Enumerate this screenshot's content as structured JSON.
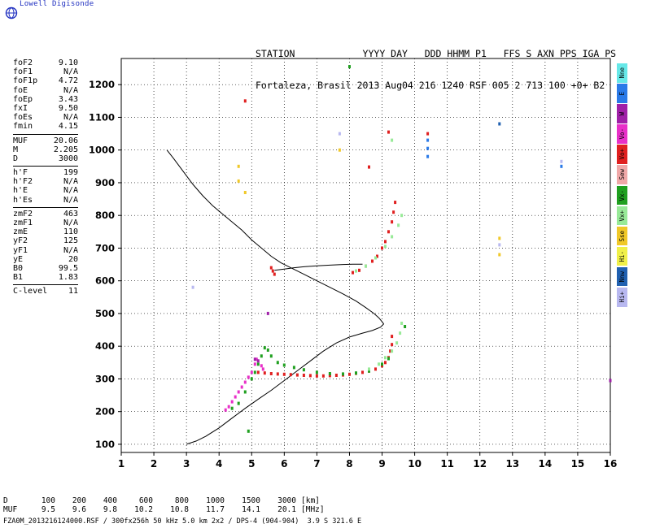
{
  "logo": {
    "text": "Lowell Digisonde"
  },
  "header": {
    "labels_line": "STATION            YYYY DAY   DDD HHMM P1   FFS S AXN PPS IGA PS",
    "values_line": "Fortaleza, Brasil 2013 Aug04 216 1240 RSF 005 2 713 100 +0+ B2"
  },
  "params": [
    {
      "label": "foF2",
      "value": "9.10"
    },
    {
      "label": "foF1",
      "value": "N/A"
    },
    {
      "label": "foF1p",
      "value": "4.72"
    },
    {
      "label": "foE",
      "value": "N/A"
    },
    {
      "label": "foEp",
      "value": "3.43"
    },
    {
      "label": "fxI",
      "value": "9.50"
    },
    {
      "label": "foEs",
      "value": "N/A"
    },
    {
      "label": "fmin",
      "value": "4.15"
    },
    {
      "sep": true
    },
    {
      "label": "MUF",
      "value": "20.06"
    },
    {
      "label": "M",
      "value": "2.205"
    },
    {
      "label": "D",
      "value": "3000"
    },
    {
      "sep": true
    },
    {
      "label": "h'F",
      "value": "199"
    },
    {
      "label": "h'F2",
      "value": "N/A"
    },
    {
      "label": "h'E",
      "value": "N/A"
    },
    {
      "label": "h'Es",
      "value": "N/A"
    },
    {
      "sep": true
    },
    {
      "label": "zmF2",
      "value": "463"
    },
    {
      "label": "zmF1",
      "value": "N/A"
    },
    {
      "label": "zmE",
      "value": "110"
    },
    {
      "label": "yF2",
      "value": "125"
    },
    {
      "label": "yF1",
      "value": "N/A"
    },
    {
      "label": "yE",
      "value": "20"
    },
    {
      "label": "B0",
      "value": "99.5"
    },
    {
      "label": "B1",
      "value": "1.83"
    },
    {
      "sep": true
    },
    {
      "label": "C-level",
      "value": "11"
    }
  ],
  "legend": [
    {
      "label": "Nne",
      "color": "#66e8e8"
    },
    {
      "label": "E",
      "color": "#2a7ae8"
    },
    {
      "label": "W",
      "color": "#a020a8"
    },
    {
      "label": "Vo-",
      "color": "#e830c8"
    },
    {
      "label": "Vo+",
      "color": "#e02020"
    },
    {
      "label": "Sew",
      "color": "#f0a8a8"
    },
    {
      "label": "Vx-",
      "color": "#20a020"
    },
    {
      "label": "Vx+",
      "color": "#98ea98"
    },
    {
      "label": "Sse",
      "color": "#f0c828"
    },
    {
      "label": "Hi-",
      "color": "#f0f048"
    },
    {
      "label": "Nnw",
      "color": "#2060b0"
    },
    {
      "label": "Hi+",
      "color": "#b8b8f0"
    }
  ],
  "muf_table": {
    "d_label": "D",
    "d_values": [
      "100",
      "200",
      "400",
      "600",
      "800",
      "1000",
      "1500",
      "3000"
    ],
    "d_unit": "[km]",
    "muf_label": "MUF",
    "muf_values": [
      "9.5",
      "9.6",
      "9.8",
      "10.2",
      "10.8",
      "11.7",
      "14.1",
      "20.1"
    ],
    "muf_unit": "[MHz]"
  },
  "footer": "FZA0M_2013216124000.RSF / 300fx256h 50 kHz 5.0 km 2x2 / DPS-4 (904-904)  3.9 S 321.6 E",
  "chart_data": {
    "type": "scatter",
    "xlim": [
      1,
      16
    ],
    "ylim": [
      75,
      1280
    ],
    "xticks": [
      1,
      2,
      3,
      4,
      5,
      6,
      7,
      8,
      9,
      10,
      11,
      12,
      13,
      14,
      15,
      16
    ],
    "yticks": [
      100,
      200,
      300,
      400,
      500,
      600,
      700,
      800,
      900,
      1000,
      1100,
      1200
    ],
    "grid": true,
    "series": [
      {
        "name": "Vo+",
        "color": "#e02020",
        "points": [
          [
            5.2,
            320
          ],
          [
            5.4,
            318
          ],
          [
            5.6,
            316
          ],
          [
            5.8,
            315
          ],
          [
            6.0,
            314
          ],
          [
            6.2,
            313
          ],
          [
            6.4,
            312
          ],
          [
            6.6,
            311
          ],
          [
            6.8,
            310
          ],
          [
            7.0,
            309
          ],
          [
            7.2,
            309
          ],
          [
            7.4,
            310
          ],
          [
            7.6,
            311
          ],
          [
            7.8,
            312
          ],
          [
            8.0,
            314
          ],
          [
            8.2,
            317
          ],
          [
            8.4,
            320
          ],
          [
            8.6,
            324
          ],
          [
            8.8,
            330
          ],
          [
            9.0,
            340
          ],
          [
            9.1,
            350
          ],
          [
            9.2,
            365
          ],
          [
            9.25,
            385
          ],
          [
            9.3,
            405
          ],
          [
            9.3,
            430
          ],
          [
            8.1,
            625
          ],
          [
            8.3,
            632
          ],
          [
            8.5,
            645
          ],
          [
            8.7,
            660
          ],
          [
            8.85,
            675
          ],
          [
            9.0,
            700
          ],
          [
            9.1,
            720
          ],
          [
            9.2,
            750
          ],
          [
            9.3,
            780
          ],
          [
            9.35,
            810
          ],
          [
            9.4,
            840
          ],
          [
            5.6,
            640
          ],
          [
            5.65,
            630
          ],
          [
            5.7,
            620
          ],
          [
            4.8,
            1150
          ],
          [
            8.6,
            948
          ],
          [
            9.2,
            1055
          ],
          [
            10.4,
            1050
          ]
        ]
      },
      {
        "name": "Vo-",
        "color": "#e830c8",
        "points": [
          [
            4.2,
            205
          ],
          [
            4.3,
            215
          ],
          [
            4.4,
            230
          ],
          [
            4.5,
            245
          ],
          [
            4.6,
            260
          ],
          [
            4.7,
            275
          ],
          [
            4.8,
            290
          ],
          [
            4.9,
            305
          ],
          [
            5.0,
            320
          ],
          [
            5.1,
            345
          ],
          [
            5.15,
            360
          ],
          [
            5.3,
            340
          ],
          [
            5.35,
            330
          ]
        ]
      },
      {
        "name": "Vx-",
        "color": "#20a020",
        "points": [
          [
            4.4,
            210
          ],
          [
            4.6,
            225
          ],
          [
            4.8,
            260
          ],
          [
            5.0,
            300
          ],
          [
            5.1,
            320
          ],
          [
            5.2,
            345
          ],
          [
            5.3,
            370
          ],
          [
            5.4,
            395
          ],
          [
            5.5,
            388
          ],
          [
            5.6,
            370
          ],
          [
            5.8,
            350
          ],
          [
            6.0,
            342
          ],
          [
            6.3,
            335
          ],
          [
            6.6,
            328
          ],
          [
            7.0,
            320
          ],
          [
            7.4,
            316
          ],
          [
            7.8,
            315
          ],
          [
            8.2,
            318
          ],
          [
            8.6,
            324
          ],
          [
            9.0,
            345
          ],
          [
            9.2,
            362
          ],
          [
            4.9,
            140
          ],
          [
            8.0,
            1255
          ],
          [
            9.7,
            460
          ]
        ]
      },
      {
        "name": "Vx+",
        "color": "#98ea98",
        "points": [
          [
            8.6,
            330
          ],
          [
            8.9,
            345
          ],
          [
            9.1,
            365
          ],
          [
            9.3,
            385
          ],
          [
            9.45,
            410
          ],
          [
            9.55,
            440
          ],
          [
            9.6,
            470
          ],
          [
            8.2,
            630
          ],
          [
            8.5,
            645
          ],
          [
            8.8,
            670
          ],
          [
            9.1,
            705
          ],
          [
            9.3,
            735
          ],
          [
            9.5,
            770
          ],
          [
            9.6,
            800
          ],
          [
            9.3,
            1030
          ]
        ]
      },
      {
        "name": "Hi+",
        "color": "#b8b8f0",
        "points": [
          [
            3.2,
            580
          ],
          [
            7.7,
            1050
          ],
          [
            12.6,
            710
          ],
          [
            14.5,
            965
          ]
        ]
      },
      {
        "name": "E",
        "color": "#2a7ae8",
        "points": [
          [
            10.4,
            980
          ],
          [
            10.4,
            1005
          ],
          [
            10.4,
            1030
          ],
          [
            14.5,
            950
          ]
        ]
      },
      {
        "name": "Sse",
        "color": "#f0c828",
        "points": [
          [
            4.6,
            950
          ],
          [
            4.6,
            905
          ],
          [
            4.8,
            870
          ],
          [
            7.7,
            1000
          ],
          [
            12.6,
            730
          ],
          [
            12.6,
            680
          ]
        ]
      },
      {
        "name": "W",
        "color": "#a020a8",
        "points": [
          [
            5.1,
            360
          ],
          [
            5.2,
            355
          ],
          [
            16.0,
            295
          ],
          [
            5.5,
            500
          ]
        ]
      },
      {
        "name": "Nnw",
        "color": "#2060b0",
        "points": [
          [
            12.6,
            1080
          ]
        ]
      }
    ],
    "curves": [
      {
        "name": "true-height profile",
        "color": "#000000",
        "points": [
          [
            2.4,
            1000
          ],
          [
            2.6,
            975
          ],
          [
            2.9,
            935
          ],
          [
            3.2,
            895
          ],
          [
            3.5,
            860
          ],
          [
            3.8,
            830
          ],
          [
            4.1,
            805
          ],
          [
            4.4,
            780
          ],
          [
            4.7,
            755
          ],
          [
            5.0,
            725
          ],
          [
            5.3,
            700
          ],
          [
            5.6,
            675
          ],
          [
            5.9,
            655
          ],
          [
            6.2,
            640
          ],
          [
            6.6,
            620
          ],
          [
            7.0,
            600
          ],
          [
            7.4,
            580
          ],
          [
            7.8,
            560
          ],
          [
            8.2,
            538
          ],
          [
            8.5,
            518
          ],
          [
            8.75,
            500
          ],
          [
            8.9,
            487
          ],
          [
            9.0,
            475
          ],
          [
            9.05,
            468
          ],
          [
            8.95,
            458
          ],
          [
            8.7,
            448
          ],
          [
            8.4,
            440
          ],
          [
            8.0,
            428
          ],
          [
            7.6,
            410
          ],
          [
            7.2,
            385
          ],
          [
            6.8,
            355
          ],
          [
            6.4,
            325
          ],
          [
            6.0,
            295
          ],
          [
            5.6,
            265
          ],
          [
            5.2,
            238
          ],
          [
            4.8,
            210
          ],
          [
            4.4,
            180
          ],
          [
            4.0,
            150
          ],
          [
            3.6,
            125
          ],
          [
            3.3,
            110
          ],
          [
            3.0,
            100
          ]
        ]
      },
      {
        "name": "E-layer model",
        "color": "#000000",
        "points": [
          [
            5.7,
            632
          ],
          [
            6.0,
            636
          ],
          [
            6.3,
            640
          ],
          [
            6.6,
            643
          ],
          [
            7.0,
            646
          ],
          [
            7.4,
            648
          ],
          [
            7.8,
            650
          ],
          [
            8.1,
            651
          ],
          [
            8.4,
            651
          ]
        ]
      }
    ]
  }
}
